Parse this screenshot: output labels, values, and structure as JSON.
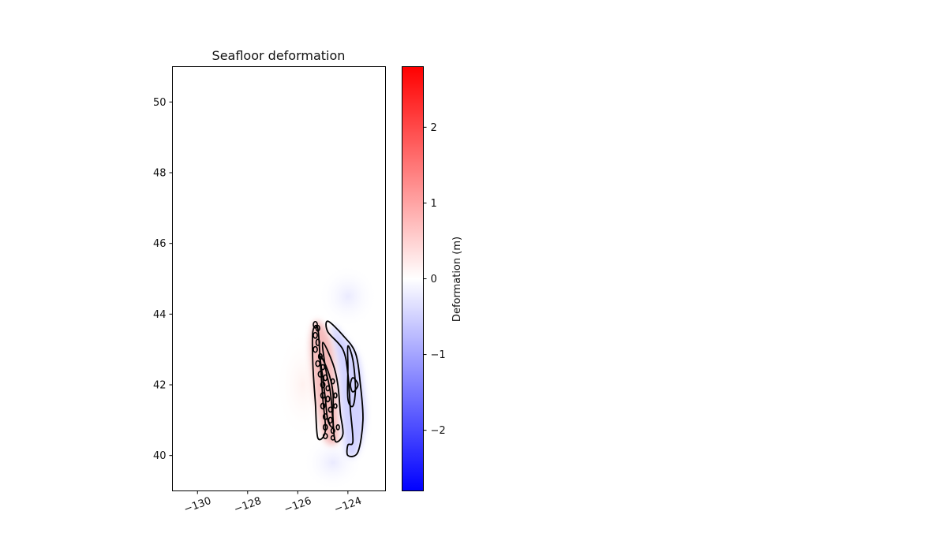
{
  "chart_data": {
    "type": "heatmap",
    "title": "Seafloor deformation",
    "xlabel": "",
    "ylabel": "",
    "xlim": [
      -131,
      -122.5
    ],
    "ylim": [
      39,
      51
    ],
    "x_ticks": [
      -130,
      -128,
      -126,
      -124
    ],
    "x_tick_labels": [
      "−130",
      "−128",
      "−126",
      "−124"
    ],
    "y_ticks": [
      40,
      42,
      44,
      46,
      48,
      50
    ],
    "y_tick_labels": [
      "40",
      "42",
      "44",
      "46",
      "48",
      "50"
    ],
    "grid": false,
    "colorbar": {
      "label": "Deformation (m)",
      "range": [
        -2.8,
        2.8
      ],
      "ticks": [
        -2,
        -1,
        0,
        1,
        2
      ],
      "tick_labels": [
        "−2",
        "−1",
        "0",
        "1",
        "2"
      ],
      "colors": {
        "low": "#0000ff",
        "mid": "#ffffff",
        "high": "#ff0000"
      }
    },
    "uplift_zone": [
      [
        -125.3,
        43.8
      ],
      [
        -124.9,
        43.6
      ],
      [
        -124.6,
        43.0
      ],
      [
        -124.5,
        42.2
      ],
      [
        -124.4,
        41.2
      ],
      [
        -124.4,
        40.4
      ],
      [
        -124.9,
        40.4
      ],
      [
        -125.2,
        41.2
      ],
      [
        -125.4,
        42.2
      ],
      [
        -125.5,
        43.2
      ]
    ],
    "subsidence_zone": [
      [
        -124.6,
        43.7
      ],
      [
        -124.1,
        43.3
      ],
      [
        -123.6,
        42.8
      ],
      [
        -123.4,
        42.0
      ],
      [
        -123.3,
        41.0
      ],
      [
        -123.6,
        40.1
      ],
      [
        -124.0,
        40.0
      ],
      [
        -124.2,
        40.6
      ],
      [
        -124.3,
        41.5
      ],
      [
        -124.4,
        42.5
      ],
      [
        -124.6,
        43.3
      ]
    ],
    "contours": [
      {
        "level": -0.2,
        "points": [
          [
            -124.8,
            43.8
          ],
          [
            -124.2,
            43.4
          ],
          [
            -123.7,
            42.9
          ],
          [
            -123.5,
            42.0
          ],
          [
            -123.4,
            41.0
          ],
          [
            -123.6,
            40.1
          ],
          [
            -124.0,
            40.0
          ],
          [
            -124.0,
            40.3
          ],
          [
            -123.8,
            40.4
          ],
          [
            -123.9,
            41.3
          ],
          [
            -124.0,
            42.3
          ],
          [
            -124.2,
            43.0
          ],
          [
            -124.8,
            43.5
          ]
        ]
      },
      {
        "level": -0.6,
        "points": [
          [
            -124.0,
            43.1
          ],
          [
            -123.8,
            42.7
          ],
          [
            -123.7,
            41.9
          ],
          [
            -123.8,
            41.4
          ],
          [
            -124.0,
            41.6
          ],
          [
            -124.0,
            42.5
          ]
        ]
      },
      {
        "level": -1.0,
        "points": [
          [
            -123.8,
            42.2
          ],
          [
            -123.6,
            42.0
          ],
          [
            -123.8,
            41.8
          ],
          [
            -123.9,
            42.0
          ]
        ]
      },
      {
        "level": 0.2,
        "points": [
          [
            -125.0,
            43.2
          ],
          [
            -124.6,
            42.6
          ],
          [
            -124.4,
            42.0
          ],
          [
            -124.3,
            41.2
          ],
          [
            -124.2,
            40.6
          ],
          [
            -124.5,
            40.4
          ],
          [
            -124.6,
            41.0
          ],
          [
            -124.7,
            41.8
          ],
          [
            -124.9,
            42.5
          ]
        ]
      },
      {
        "level": 0.6,
        "points": [
          [
            -125.1,
            42.8
          ],
          [
            -124.8,
            42.4
          ],
          [
            -124.6,
            41.8
          ],
          [
            -124.6,
            41.2
          ],
          [
            -124.6,
            40.8
          ],
          [
            -124.8,
            41.0
          ],
          [
            -124.9,
            41.6
          ],
          [
            -125.0,
            42.2
          ]
        ]
      },
      {
        "level": 1.0,
        "points": [
          [
            -125.2,
            43.6
          ],
          [
            -125.1,
            42.6
          ],
          [
            -125.0,
            41.6
          ],
          [
            -124.9,
            40.7
          ],
          [
            -125.2,
            40.5
          ],
          [
            -125.3,
            41.5
          ],
          [
            -125.4,
            42.6
          ],
          [
            -125.4,
            43.5
          ]
        ]
      }
    ],
    "contour_loops": [
      {
        "center": [
          -125.3,
          43.7
        ],
        "r": [
          0.08,
          0.09
        ]
      },
      {
        "center": [
          -125.2,
          43.6
        ],
        "r": [
          0.07,
          0.08
        ]
      },
      {
        "center": [
          -125.3,
          43.4
        ],
        "r": [
          0.08,
          0.08
        ]
      },
      {
        "center": [
          -125.2,
          43.2
        ],
        "r": [
          0.07,
          0.09
        ]
      },
      {
        "center": [
          -125.3,
          43.0
        ],
        "r": [
          0.08,
          0.08
        ]
      },
      {
        "center": [
          -125.1,
          42.8
        ],
        "r": [
          0.07,
          0.08
        ]
      },
      {
        "center": [
          -125.2,
          42.6
        ],
        "r": [
          0.08,
          0.08
        ]
      },
      {
        "center": [
          -125.0,
          42.5
        ],
        "r": [
          0.07,
          0.07
        ]
      },
      {
        "center": [
          -125.1,
          42.3
        ],
        "r": [
          0.08,
          0.08
        ]
      },
      {
        "center": [
          -124.9,
          42.2
        ],
        "r": [
          0.07,
          0.08
        ]
      },
      {
        "center": [
          -125.0,
          42.0
        ],
        "r": [
          0.08,
          0.08
        ]
      },
      {
        "center": [
          -124.8,
          41.9
        ],
        "r": [
          0.07,
          0.07
        ]
      },
      {
        "center": [
          -125.0,
          41.7
        ],
        "r": [
          0.08,
          0.08
        ]
      },
      {
        "center": [
          -124.8,
          41.6
        ],
        "r": [
          0.07,
          0.08
        ]
      },
      {
        "center": [
          -125.0,
          41.4
        ],
        "r": [
          0.08,
          0.08
        ]
      },
      {
        "center": [
          -124.7,
          41.3
        ],
        "r": [
          0.07,
          0.07
        ]
      },
      {
        "center": [
          -124.9,
          41.1
        ],
        "r": [
          0.08,
          0.08
        ]
      },
      {
        "center": [
          -124.7,
          41.0
        ],
        "r": [
          0.07,
          0.08
        ]
      },
      {
        "center": [
          -124.9,
          40.8
        ],
        "r": [
          0.08,
          0.08
        ]
      },
      {
        "center": [
          -124.6,
          40.7
        ],
        "r": [
          0.07,
          0.07
        ]
      },
      {
        "center": [
          -124.9,
          40.55
        ],
        "r": [
          0.08,
          0.07
        ]
      },
      {
        "center": [
          -124.6,
          40.5
        ],
        "r": [
          0.07,
          0.06
        ]
      },
      {
        "center": [
          -124.5,
          41.7
        ],
        "r": [
          0.06,
          0.07
        ]
      },
      {
        "center": [
          -124.5,
          41.4
        ],
        "r": [
          0.06,
          0.06
        ]
      },
      {
        "center": [
          -124.6,
          42.1
        ],
        "r": [
          0.06,
          0.07
        ]
      },
      {
        "center": [
          -124.4,
          40.8
        ],
        "r": [
          0.06,
          0.07
        ]
      }
    ]
  }
}
